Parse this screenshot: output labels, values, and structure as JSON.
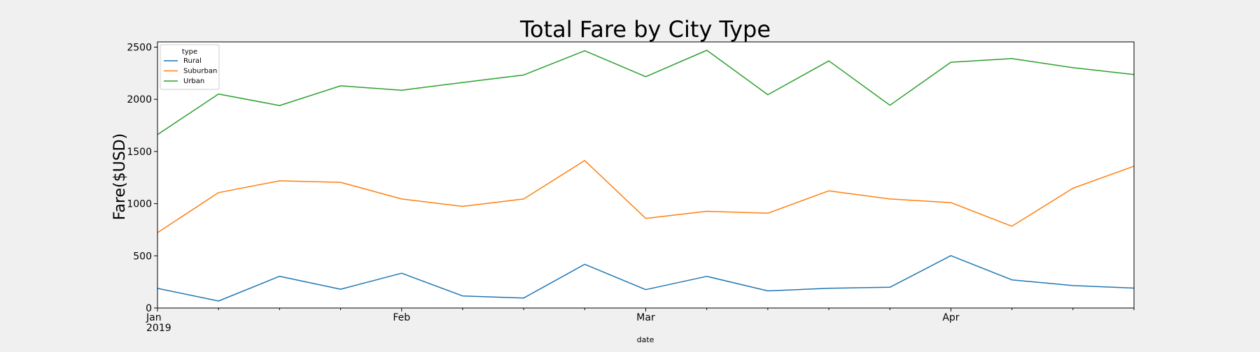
{
  "chart_data": {
    "type": "line",
    "title": "Total Fare by City Type",
    "xlabel": "date",
    "ylabel": "Fare($USD)",
    "x": [
      "2019-01-06",
      "2019-01-13",
      "2019-01-20",
      "2019-01-27",
      "2019-02-03",
      "2019-02-10",
      "2019-02-17",
      "2019-02-24",
      "2019-03-03",
      "2019-03-10",
      "2019-03-17",
      "2019-03-24",
      "2019-03-31",
      "2019-04-07",
      "2019-04-14",
      "2019-04-21",
      "2019-04-28"
    ],
    "x_tick_labels": [
      {
        "date": "2019-01-06",
        "label": "Jan",
        "sublabel": "2019"
      },
      {
        "date": "2019-02-03",
        "label": "Feb",
        "sublabel": ""
      },
      {
        "date": "2019-03-03",
        "label": "Mar",
        "sublabel": ""
      },
      {
        "date": "2019-04-07",
        "label": "Apr",
        "sublabel": ""
      }
    ],
    "ylim": [
      0,
      2550
    ],
    "yticks": [
      0,
      500,
      1000,
      1500,
      2000,
      2500
    ],
    "legend": {
      "title": "type",
      "placement": "upper-left"
    },
    "series": [
      {
        "name": "Rural",
        "color": "#1f77b4",
        "values": [
          188,
          67,
          304,
          180,
          333,
          116,
          96,
          419,
          176,
          303,
          164,
          189,
          199,
          501,
          270,
          215,
          191
        ]
      },
      {
        "name": "Suburban",
        "color": "#ff7f0e",
        "values": [
          722,
          1106,
          1219,
          1204,
          1045,
          974,
          1045,
          1413,
          859,
          927,
          908,
          1123,
          1045,
          1010,
          784,
          1148,
          1359
        ]
      },
      {
        "name": "Urban",
        "color": "#2ca02c",
        "values": [
          1662,
          2051,
          1940,
          2129,
          2087,
          2161,
          2233,
          2465,
          2217,
          2470,
          2044,
          2368,
          1943,
          2355,
          2390,
          2303,
          2237
        ]
      }
    ]
  }
}
